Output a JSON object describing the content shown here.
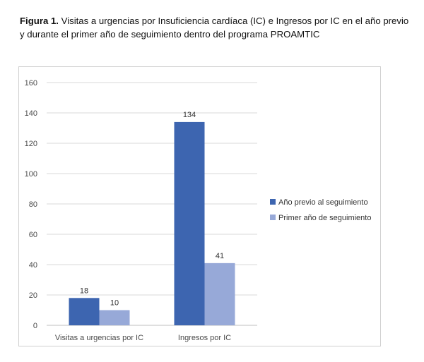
{
  "caption": {
    "label": "Figura 1.",
    "text": " Visitas a urgencias por Insuficiencia cardíaca (IC) e Ingresos por IC en el año previo y durante el primer año de seguimiento dentro del programa PROAMTIC"
  },
  "chart_data": {
    "type": "bar",
    "title": "",
    "xlabel": "",
    "ylabel": "",
    "ylim": [
      0,
      160
    ],
    "yticks": [
      0,
      20,
      40,
      60,
      80,
      100,
      120,
      140,
      160
    ],
    "grid": true,
    "legend_position": "right",
    "categories": [
      "Visitas a urgencias por IC",
      "Ingresos por IC"
    ],
    "series": [
      {
        "name": "Año previo al seguimiento",
        "values": [
          18,
          134
        ],
        "color": "#3d65b0"
      },
      {
        "name": "Primer año de seguimiento",
        "values": [
          10,
          41
        ],
        "color": "#97a9d8"
      }
    ]
  }
}
